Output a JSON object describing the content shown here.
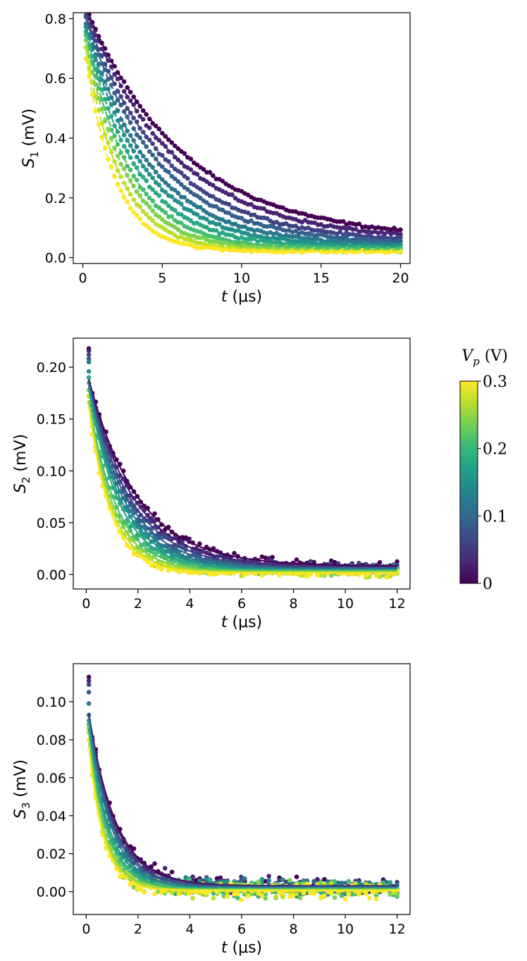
{
  "chart_data": [
    {
      "type": "scatter",
      "id": "s1",
      "xlabel_var": "t",
      "xlabel_unit": "(μs)",
      "ylabel_var": "S",
      "ylabel_sub": "1",
      "ylabel_unit": "(mV)",
      "xlim": [
        -0.6,
        20.6
      ],
      "ylim": [
        -0.02,
        0.82
      ],
      "xticks": [
        0,
        5,
        10,
        15,
        20
      ],
      "yticks": [
        0.0,
        0.2,
        0.4,
        0.6,
        0.8
      ],
      "ytick_labels": [
        "0.0",
        "0.2",
        "0.4",
        "0.6",
        "0.8"
      ],
      "t_min": 0.2,
      "t_max": 20,
      "n_points": 100,
      "noise": 0.004,
      "fit_style": "dashed",
      "series": [
        {
          "vp": 0.0,
          "A": 0.8,
          "tau": 6.2,
          "c": 0.06
        },
        {
          "vp": 0.03,
          "A": 0.8,
          "tau": 5.6,
          "c": 0.055
        },
        {
          "vp": 0.06,
          "A": 0.79,
          "tau": 5.0,
          "c": 0.05
        },
        {
          "vp": 0.09,
          "A": 0.79,
          "tau": 4.5,
          "c": 0.045
        },
        {
          "vp": 0.12,
          "A": 0.78,
          "tau": 4.0,
          "c": 0.04
        },
        {
          "vp": 0.15,
          "A": 0.78,
          "tau": 3.6,
          "c": 0.036
        },
        {
          "vp": 0.18,
          "A": 0.77,
          "tau": 3.2,
          "c": 0.032
        },
        {
          "vp": 0.21,
          "A": 0.77,
          "tau": 2.8,
          "c": 0.028
        },
        {
          "vp": 0.24,
          "A": 0.76,
          "tau": 2.5,
          "c": 0.025
        },
        {
          "vp": 0.27,
          "A": 0.74,
          "tau": 2.2,
          "c": 0.022
        },
        {
          "vp": 0.3,
          "A": 0.72,
          "tau": 1.9,
          "c": 0.02
        }
      ]
    },
    {
      "type": "scatter",
      "id": "s2",
      "xlabel_var": "t",
      "xlabel_unit": "(μs)",
      "ylabel_var": "S",
      "ylabel_sub": "2",
      "ylabel_unit": "(mV)",
      "xlim": [
        -0.5,
        12.5
      ],
      "ylim": [
        -0.014,
        0.228
      ],
      "xticks": [
        0,
        2,
        4,
        6,
        8,
        10,
        12
      ],
      "yticks": [
        0.0,
        0.05,
        0.1,
        0.15,
        0.2
      ],
      "ytick_labels": [
        "0.00",
        "0.05",
        "0.10",
        "0.15",
        "0.20"
      ],
      "t_min": 0.1,
      "t_max": 12,
      "n_points": 90,
      "noise": 0.0035,
      "fit_style": "solid",
      "series": [
        {
          "vp": 0.0,
          "A": 0.19,
          "tau": 1.9,
          "c": 0.008,
          "first": 0.218
        },
        {
          "vp": 0.03,
          "A": 0.19,
          "tau": 1.75,
          "c": 0.007,
          "first": 0.216
        },
        {
          "vp": 0.06,
          "A": 0.19,
          "tau": 1.62,
          "c": 0.0065,
          "first": 0.212
        },
        {
          "vp": 0.09,
          "A": 0.19,
          "tau": 1.5,
          "c": 0.006,
          "first": 0.208
        },
        {
          "vp": 0.12,
          "A": 0.19,
          "tau": 1.4,
          "c": 0.005,
          "first": 0.205
        },
        {
          "vp": 0.15,
          "A": 0.19,
          "tau": 1.3,
          "c": 0.0045,
          "first": 0.196
        },
        {
          "vp": 0.18,
          "A": 0.19,
          "tau": 1.2,
          "c": 0.004,
          "first": 0.19
        },
        {
          "vp": 0.21,
          "A": 0.18,
          "tau": 1.1,
          "c": 0.0035,
          "first": 0.185
        },
        {
          "vp": 0.24,
          "A": 0.18,
          "tau": 1.0,
          "c": 0.003,
          "first": 0.178
        },
        {
          "vp": 0.27,
          "A": 0.18,
          "tau": 0.92,
          "c": 0.002,
          "first": 0.172
        },
        {
          "vp": 0.3,
          "A": 0.18,
          "tau": 0.85,
          "c": 0.0015,
          "first": 0.166
        }
      ]
    },
    {
      "type": "scatter",
      "id": "s3",
      "xlabel_var": "t",
      "xlabel_unit": "(μs)",
      "ylabel_var": "S",
      "ylabel_sub": "3",
      "ylabel_unit": "(mV)",
      "xlim": [
        -0.5,
        12.5
      ],
      "ylim": [
        -0.012,
        0.12
      ],
      "xticks": [
        0,
        2,
        4,
        6,
        8,
        10,
        12
      ],
      "yticks": [
        0.0,
        0.02,
        0.04,
        0.06,
        0.08,
        0.1
      ],
      "ytick_labels": [
        "0.00",
        "0.02",
        "0.04",
        "0.06",
        "0.08",
        "0.10"
      ],
      "t_min": 0.1,
      "t_max": 12,
      "n_points": 90,
      "noise": 0.0035,
      "fit_style": "solid",
      "series": [
        {
          "vp": 0.0,
          "A": 0.1,
          "tau": 1.05,
          "c": 0.003,
          "first": 0.113
        },
        {
          "vp": 0.03,
          "A": 0.1,
          "tau": 1.0,
          "c": 0.003,
          "first": 0.111
        },
        {
          "vp": 0.06,
          "A": 0.1,
          "tau": 0.95,
          "c": 0.0025,
          "first": 0.109
        },
        {
          "vp": 0.09,
          "A": 0.1,
          "tau": 0.9,
          "c": 0.0025,
          "first": 0.105
        },
        {
          "vp": 0.12,
          "A": 0.1,
          "tau": 0.85,
          "c": 0.002,
          "first": 0.099
        },
        {
          "vp": 0.15,
          "A": 0.095,
          "tau": 0.8,
          "c": 0.002,
          "first": 0.093
        },
        {
          "vp": 0.18,
          "A": 0.095,
          "tau": 0.75,
          "c": 0.0015,
          "first": 0.09
        },
        {
          "vp": 0.21,
          "A": 0.095,
          "tau": 0.7,
          "c": 0.0015,
          "first": 0.088
        },
        {
          "vp": 0.24,
          "A": 0.09,
          "tau": 0.66,
          "c": 0.001,
          "first": 0.086
        },
        {
          "vp": 0.27,
          "A": 0.09,
          "tau": 0.62,
          "c": 0.001,
          "first": 0.084
        },
        {
          "vp": 0.3,
          "A": 0.09,
          "tau": 0.58,
          "c": 0.0005,
          "first": 0.08
        }
      ]
    }
  ],
  "colorbar": {
    "label_var": "V",
    "label_sub": "p",
    "label_unit": "(V)",
    "colormap": "viridis",
    "range": [
      0,
      0.3
    ],
    "ticks": [
      0,
      0.1,
      0.2,
      0.3
    ],
    "tick_labels": [
      "0",
      "0.1",
      "0.2",
      "0.3"
    ],
    "viridis_stops": [
      "#440154",
      "#482878",
      "#3e4989",
      "#31688e",
      "#26828e",
      "#1f9e89",
      "#35b779",
      "#6ece58",
      "#b5de2b",
      "#fde725"
    ]
  }
}
